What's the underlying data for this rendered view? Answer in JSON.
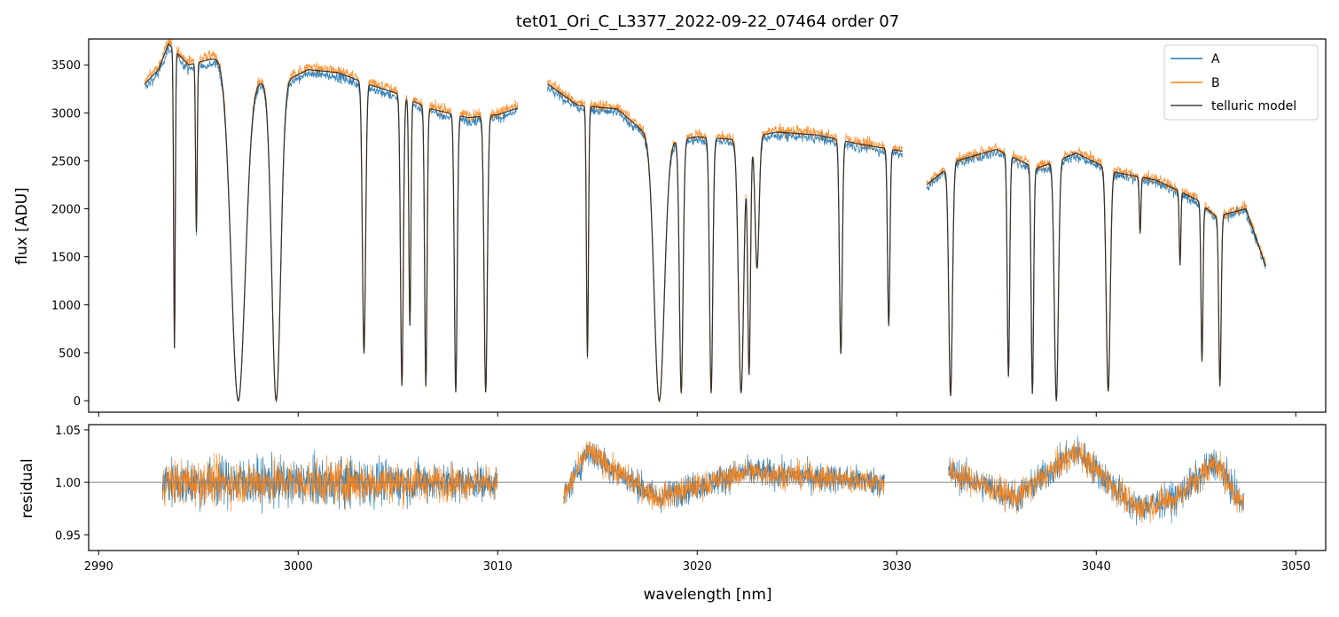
{
  "chart_data": {
    "type": "line",
    "title": "tet01_Ori_C_L3377_2022-09-22_07464  order 07",
    "xlabel": "wavelength [nm]",
    "xlim": [
      2989.5,
      3051.5
    ],
    "x_ticks": [
      2990,
      3000,
      3010,
      3020,
      3030,
      3040,
      3050
    ],
    "x_tick_labels": [
      "2990",
      "3000",
      "3010",
      "3020",
      "3030",
      "3040",
      "3050"
    ],
    "colors": {
      "A": "#1f77b4",
      "B": "#ff7f0e",
      "model": "#444444",
      "refline": "#808080"
    },
    "legend": {
      "position": "top-right",
      "entries": [
        {
          "label": "A",
          "color": "#1f77b4"
        },
        {
          "label": "B",
          "color": "#ff7f0e"
        },
        {
          "label": "telluric model",
          "color": "#444444"
        }
      ]
    },
    "panels": [
      {
        "name": "flux",
        "ylabel": "flux [ADU]",
        "ylim": [
          -120,
          3770
        ],
        "y_ticks": [
          0,
          500,
          1000,
          1500,
          2000,
          2500,
          3000,
          3500
        ],
        "y_tick_labels": [
          "0",
          "500",
          "1000",
          "1500",
          "2000",
          "2500",
          "3000",
          "3500"
        ],
        "segments": [
          [
            2992.3,
            3011.0
          ],
          [
            3012.5,
            3030.3
          ],
          [
            3031.5,
            3048.5
          ]
        ],
        "continuum": [
          [
            2992.3,
            3300
          ],
          [
            2993.0,
            3450
          ],
          [
            2993.5,
            3720
          ],
          [
            2994.5,
            3500
          ],
          [
            2996.0,
            3580
          ],
          [
            2997.5,
            3350
          ],
          [
            2999.0,
            3300
          ],
          [
            3000.5,
            3450
          ],
          [
            3002.0,
            3420
          ],
          [
            3003.5,
            3300
          ],
          [
            3005.0,
            3200
          ],
          [
            3006.5,
            3050
          ],
          [
            3008.5,
            2950
          ],
          [
            3010.0,
            2980
          ],
          [
            3011.0,
            3050
          ],
          [
            3012.5,
            3300
          ],
          [
            3014.0,
            3080
          ],
          [
            3016.0,
            3040
          ],
          [
            3018.0,
            2680
          ],
          [
            3020.0,
            2750
          ],
          [
            3022.0,
            2720
          ],
          [
            3024.0,
            2800
          ],
          [
            3026.0,
            2770
          ],
          [
            3028.0,
            2680
          ],
          [
            3030.3,
            2600
          ],
          [
            3031.5,
            2250
          ],
          [
            3033.0,
            2500
          ],
          [
            3035.0,
            2620
          ],
          [
            3037.0,
            2420
          ],
          [
            3039.0,
            2580
          ],
          [
            3041.0,
            2380
          ],
          [
            3043.0,
            2300
          ],
          [
            3045.0,
            2100
          ],
          [
            3046.0,
            1920
          ],
          [
            3047.5,
            2000
          ],
          [
            3048.5,
            1400
          ]
        ],
        "absorption_lines": [
          [
            2993.8,
            0.85,
            0.04
          ],
          [
            2994.9,
            0.5,
            0.04
          ],
          [
            2997.0,
            1.0,
            0.35
          ],
          [
            2998.9,
            1.0,
            0.22
          ],
          [
            3003.3,
            0.85,
            0.08
          ],
          [
            3005.2,
            0.95,
            0.07
          ],
          [
            3005.6,
            0.75,
            0.05
          ],
          [
            3006.4,
            0.95,
            0.06
          ],
          [
            3007.9,
            0.97,
            0.07
          ],
          [
            3009.4,
            0.97,
            0.08
          ],
          [
            3014.5,
            0.85,
            0.05
          ],
          [
            3018.1,
            1.0,
            0.25
          ],
          [
            3019.2,
            0.97,
            0.09
          ],
          [
            3020.7,
            0.97,
            0.08
          ],
          [
            3022.2,
            0.97,
            0.13
          ],
          [
            3022.6,
            0.9,
            0.07
          ],
          [
            3023.0,
            0.5,
            0.1
          ],
          [
            3027.2,
            0.82,
            0.07
          ],
          [
            3029.6,
            0.7,
            0.06
          ],
          [
            3032.7,
            0.98,
            0.09
          ],
          [
            3035.6,
            0.9,
            0.06
          ],
          [
            3036.8,
            0.97,
            0.06
          ],
          [
            3038.0,
            1.0,
            0.1
          ],
          [
            3040.6,
            0.96,
            0.1
          ],
          [
            3042.2,
            0.25,
            0.04
          ],
          [
            3044.2,
            0.35,
            0.04
          ],
          [
            3045.3,
            0.8,
            0.05
          ],
          [
            3046.2,
            0.92,
            0.06
          ]
        ]
      },
      {
        "name": "residual",
        "ylabel": "residual",
        "ylim": [
          0.935,
          1.055
        ],
        "y_ticks": [
          0.95,
          1.0,
          1.05
        ],
        "y_tick_labels": [
          "0.95",
          "1.00",
          "1.05"
        ],
        "reference_line": 1.0,
        "segments": [
          [
            2993.2,
            3010.0
          ],
          [
            3013.3,
            3029.4
          ],
          [
            3032.6,
            3047.4
          ]
        ],
        "noise_amplitude": [
          [
            2993.2,
            0.03
          ],
          [
            3003.0,
            0.03
          ],
          [
            3010.0,
            0.02
          ],
          [
            3013.3,
            0.018
          ],
          [
            3029.4,
            0.018
          ],
          [
            3032.6,
            0.02
          ],
          [
            3047.4,
            0.02
          ]
        ],
        "trend": [
          [
            2993.2,
            1.0
          ],
          [
            3010.0,
            1.0
          ],
          [
            3013.3,
            0.985
          ],
          [
            3014.5,
            1.03
          ],
          [
            3016.0,
            1.01
          ],
          [
            3018.0,
            0.985
          ],
          [
            3022.5,
            1.01
          ],
          [
            3029.4,
            1.0
          ],
          [
            3032.6,
            1.01
          ],
          [
            3036.0,
            0.985
          ],
          [
            3039.0,
            1.03
          ],
          [
            3042.0,
            0.975
          ],
          [
            3044.0,
            0.985
          ],
          [
            3046.0,
            1.02
          ],
          [
            3047.4,
            0.975
          ]
        ]
      }
    ]
  }
}
